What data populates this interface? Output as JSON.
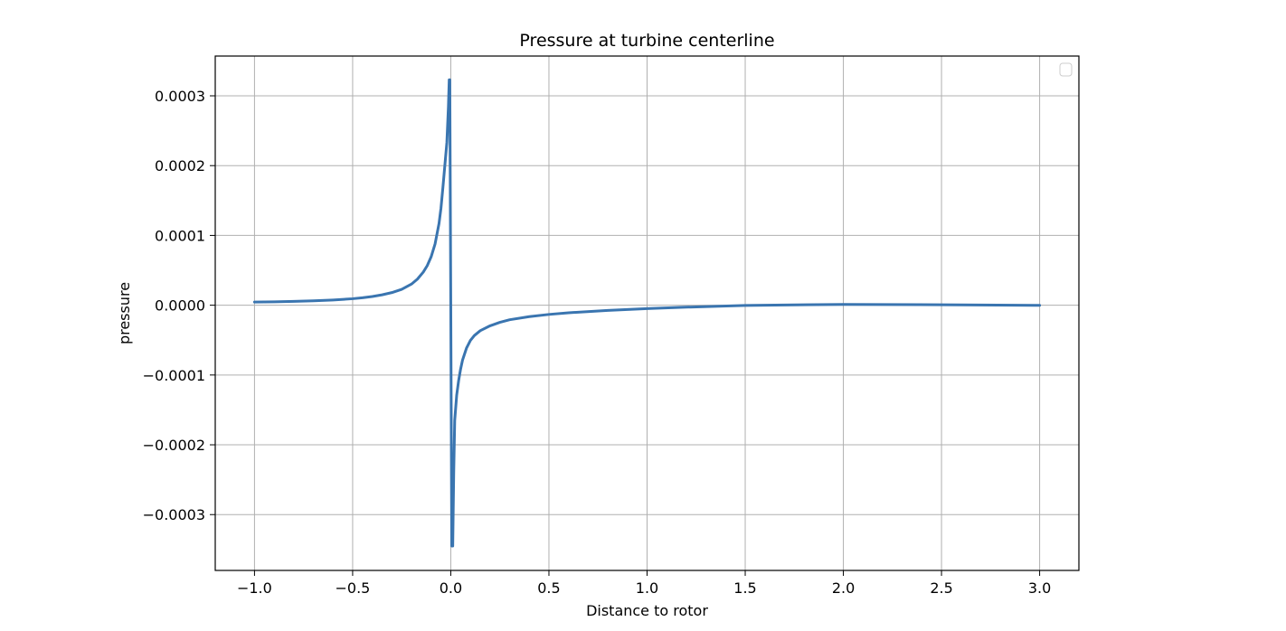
{
  "chart_data": {
    "type": "line",
    "title": "Pressure at turbine centerline",
    "xlabel": "Distance to rotor",
    "ylabel": "pressure",
    "xlim": [
      -1.2,
      3.2
    ],
    "ylim": [
      -0.00038,
      0.000357
    ],
    "grid": true,
    "legend": {
      "location": "top-right",
      "entries": []
    },
    "x_ticks": [
      -1.0,
      -0.5,
      0.0,
      0.5,
      1.0,
      1.5,
      2.0,
      2.5,
      3.0
    ],
    "x_tick_labels": [
      "−1.0",
      "−0.5",
      "0.0",
      "0.5",
      "1.0",
      "1.5",
      "2.0",
      "2.5",
      "3.0"
    ],
    "y_ticks": [
      0.0003,
      0.0002,
      0.0001,
      0.0,
      -0.0001,
      -0.0002,
      -0.0003
    ],
    "y_tick_labels": [
      "0.0003",
      "0.0002",
      "0.0001",
      "0.0000",
      "−0.0001",
      "−0.0002",
      "−0.0003"
    ],
    "series": [
      {
        "color": "#3a75b0",
        "x": [
          -1.0,
          -0.9,
          -0.8,
          -0.7,
          -0.6,
          -0.5,
          -0.45,
          -0.4,
          -0.35,
          -0.3,
          -0.25,
          -0.2,
          -0.17,
          -0.14,
          -0.12,
          -0.1,
          -0.08,
          -0.06,
          -0.05,
          -0.04,
          -0.03,
          -0.02,
          -0.012,
          -0.008,
          -0.005,
          0.0,
          0.005,
          0.01,
          0.015,
          0.02,
          0.03,
          0.04,
          0.05,
          0.06,
          0.08,
          0.1,
          0.12,
          0.15,
          0.2,
          0.25,
          0.3,
          0.4,
          0.5,
          0.6,
          0.8,
          1.0,
          1.2,
          1.5,
          2.0,
          2.5,
          3.0
        ],
        "y": [
          4.5e-06,
          4.8e-06,
          5.5e-06,
          6.3e-06,
          7.5e-06,
          9.3e-06,
          1.07e-05,
          1.25e-05,
          1.49e-05,
          1.81e-05,
          2.28e-05,
          3.03e-05,
          3.74e-05,
          4.75e-05,
          5.67e-05,
          6.94e-05,
          8.78e-05,
          0.000117,
          0.000139,
          0.000169,
          0.000201,
          0.000233,
          0.000285,
          0.000323,
          0.000323,
          0.0,
          -0.000345,
          -0.000345,
          -0.00024,
          -0.000165,
          -0.000129,
          -0.000108,
          -9.15e-05,
          -7.85e-05,
          -6.15e-05,
          -5.05e-05,
          -4.35e-05,
          -3.65e-05,
          -2.95e-05,
          -2.45e-05,
          -2.08e-05,
          -1.63e-05,
          -1.32e-05,
          -1.08e-05,
          -7.4e-06,
          -4.9e-06,
          -2.8e-06,
          -3e-07,
          1.2e-06,
          6e-07,
          -2e-07
        ]
      }
    ]
  }
}
